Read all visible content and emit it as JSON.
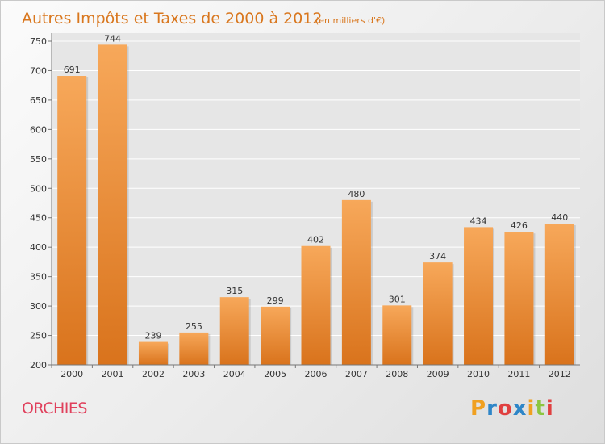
{
  "chart_data": {
    "type": "bar",
    "title": "Autres Impôts et Taxes de 2000 à 2012",
    "subtitle": "(en milliers d'€)",
    "categories": [
      "2000",
      "2001",
      "2002",
      "2003",
      "2004",
      "2005",
      "2006",
      "2007",
      "2008",
      "2009",
      "2010",
      "2011",
      "2012"
    ],
    "values": [
      691,
      744,
      239,
      255,
      315,
      299,
      402,
      480,
      301,
      374,
      434,
      426,
      440
    ],
    "ylim": [
      200,
      750
    ],
    "yticks": [
      200,
      250,
      300,
      350,
      400,
      450,
      500,
      550,
      600,
      650,
      700,
      750
    ],
    "grid": true,
    "bar_color_top": "#f7a85a",
    "bar_color_bottom": "#d9731c"
  },
  "town": "ORCHIES",
  "logo": {
    "letters": [
      "P",
      "r",
      "o",
      "x",
      "i",
      "t",
      "i"
    ],
    "colors": [
      "#f0a020",
      "#2e86c8",
      "#e04040",
      "#2e86c8",
      "#f0a020",
      "#8cc63f",
      "#e04040"
    ]
  }
}
